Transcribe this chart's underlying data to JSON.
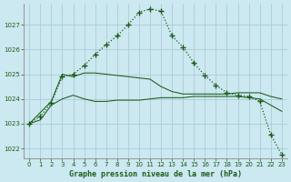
{
  "title": "Graphe pression niveau de la mer (hPa)",
  "bg_color": "#cce8f0",
  "grid_color": "#aaccd8",
  "line_color": "#1a5c1a",
  "spine_color": "#888888",
  "xlim": [
    -0.5,
    23.5
  ],
  "ylim": [
    1021.6,
    1027.85
  ],
  "yticks": [
    1022,
    1023,
    1024,
    1025,
    1026,
    1027
  ],
  "xticks": [
    0,
    1,
    2,
    3,
    4,
    5,
    6,
    7,
    8,
    9,
    10,
    11,
    12,
    13,
    14,
    15,
    16,
    17,
    18,
    19,
    20,
    21,
    22,
    23
  ],
  "s1_x": [
    0,
    1,
    2,
    3,
    4,
    5,
    6,
    7,
    8,
    9,
    10,
    11,
    12,
    13,
    14,
    15,
    16,
    17,
    18,
    19,
    20,
    21,
    22,
    23
  ],
  "s1_y": [
    1023.0,
    1023.3,
    1023.85,
    1024.9,
    1025.0,
    1025.35,
    1025.8,
    1026.2,
    1026.55,
    1027.0,
    1027.5,
    1027.65,
    1027.55,
    1026.55,
    1026.1,
    1025.45,
    1024.95,
    1024.55,
    1024.25,
    1024.15,
    1024.1,
    1023.9,
    1022.55,
    1021.75
  ],
  "s2_x": [
    0,
    1,
    2,
    3,
    4,
    5,
    6,
    7,
    8,
    9,
    10,
    11,
    12,
    13,
    14,
    15,
    16,
    17,
    18,
    19,
    20,
    21,
    22,
    23
  ],
  "s2_y": [
    1023.0,
    1023.15,
    1023.75,
    1024.0,
    1024.15,
    1024.0,
    1023.9,
    1023.9,
    1023.95,
    1023.95,
    1023.95,
    1024.0,
    1024.05,
    1024.05,
    1024.05,
    1024.1,
    1024.1,
    1024.1,
    1024.1,
    1024.1,
    1024.05,
    1024.0,
    1023.75,
    1023.5
  ],
  "s3_x": [
    0,
    2,
    3,
    4,
    5,
    6,
    7,
    8,
    9,
    10,
    11,
    12,
    13,
    14,
    15,
    16,
    17,
    18,
    19,
    20,
    21,
    22,
    23
  ],
  "s3_y": [
    1023.0,
    1023.9,
    1025.0,
    1024.9,
    1025.05,
    1025.05,
    1025.0,
    1024.95,
    1024.9,
    1024.85,
    1024.8,
    1024.5,
    1024.3,
    1024.2,
    1024.2,
    1024.2,
    1024.2,
    1024.2,
    1024.25,
    1024.25,
    1024.25,
    1024.1,
    1024.0
  ]
}
